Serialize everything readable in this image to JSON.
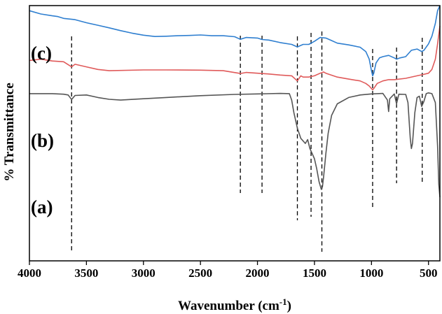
{
  "chart_data": {
    "type": "line",
    "xlabel": "Wavenumber (cm",
    "xlabel_sup": "-1",
    "xlabel_close": ")",
    "ylabel": "% Transmittance",
    "xlim": [
      4000,
      400
    ],
    "x_reversed": true,
    "xticks": [
      4000,
      3500,
      3000,
      2500,
      2000,
      1500,
      1000,
      500
    ],
    "yticks_shown": false,
    "ylim": [
      0,
      100
    ],
    "marker_lines": [
      3630,
      2150,
      1960,
      1650,
      1530,
      1435,
      990,
      780,
      555
    ],
    "series": [
      {
        "name": "(a)",
        "color": "#555555",
        "points": [
          [
            4000,
            65.5
          ],
          [
            3800,
            65.5
          ],
          [
            3700,
            65.3
          ],
          [
            3660,
            65.0
          ],
          [
            3630,
            63.2
          ],
          [
            3600,
            64.8
          ],
          [
            3500,
            65.0
          ],
          [
            3400,
            64.0
          ],
          [
            3300,
            63.3
          ],
          [
            3200,
            63.0
          ],
          [
            3000,
            63.5
          ],
          [
            2800,
            64.0
          ],
          [
            2500,
            64.7
          ],
          [
            2200,
            65.2
          ],
          [
            2000,
            65.4
          ],
          [
            1800,
            65.6
          ],
          [
            1720,
            65.5
          ],
          [
            1700,
            63.0
          ],
          [
            1680,
            58.0
          ],
          [
            1650,
            52.0
          ],
          [
            1620,
            48.0
          ],
          [
            1580,
            46.0
          ],
          [
            1560,
            47.5
          ],
          [
            1540,
            44.0
          ],
          [
            1520,
            42.0
          ],
          [
            1500,
            40.0
          ],
          [
            1480,
            36.0
          ],
          [
            1460,
            31.0
          ],
          [
            1440,
            28.0
          ],
          [
            1430,
            29.0
          ],
          [
            1420,
            33.0
          ],
          [
            1400,
            42.0
          ],
          [
            1380,
            50.0
          ],
          [
            1350,
            57.0
          ],
          [
            1300,
            61.5
          ],
          [
            1200,
            64.0
          ],
          [
            1100,
            65.0
          ],
          [
            1000,
            65.4
          ],
          [
            900,
            65.6
          ],
          [
            860,
            63.0
          ],
          [
            850,
            58.5
          ],
          [
            840,
            63.5
          ],
          [
            800,
            65.4
          ],
          [
            780,
            61.5
          ],
          [
            760,
            65.3
          ],
          [
            700,
            65.2
          ],
          [
            680,
            62.0
          ],
          [
            660,
            48.0
          ],
          [
            650,
            44.0
          ],
          [
            640,
            46.0
          ],
          [
            620,
            58.0
          ],
          [
            600,
            64.0
          ],
          [
            580,
            64.5
          ],
          [
            560,
            60.5
          ],
          [
            540,
            62.5
          ],
          [
            520,
            65.5
          ],
          [
            500,
            65.8
          ],
          [
            470,
            65.5
          ],
          [
            440,
            62.0
          ],
          [
            420,
            45.0
          ],
          [
            410,
            30.0
          ],
          [
            400,
            25.0
          ]
        ]
      },
      {
        "name": "(b)",
        "color": "#e05a5a",
        "points": [
          [
            4000,
            78.5
          ],
          [
            3900,
            79.0
          ],
          [
            3800,
            78.3
          ],
          [
            3700,
            78.0
          ],
          [
            3630,
            76.0
          ],
          [
            3600,
            77.0
          ],
          [
            3500,
            76.0
          ],
          [
            3400,
            75.0
          ],
          [
            3300,
            74.5
          ],
          [
            3000,
            74.8
          ],
          [
            2800,
            74.8
          ],
          [
            2500,
            74.7
          ],
          [
            2300,
            74.5
          ],
          [
            2150,
            73.4
          ],
          [
            2100,
            73.8
          ],
          [
            2000,
            73.5
          ],
          [
            1900,
            73.2
          ],
          [
            1800,
            72.8
          ],
          [
            1700,
            72.5
          ],
          [
            1650,
            70.5
          ],
          [
            1620,
            72.5
          ],
          [
            1600,
            72.0
          ],
          [
            1550,
            72.0
          ],
          [
            1500,
            72.5
          ],
          [
            1450,
            73.5
          ],
          [
            1420,
            74.0
          ],
          [
            1400,
            73.5
          ],
          [
            1300,
            72.0
          ],
          [
            1200,
            71.2
          ],
          [
            1100,
            70.5
          ],
          [
            1050,
            69.5
          ],
          [
            1020,
            68.5
          ],
          [
            1000,
            67.5
          ],
          [
            990,
            67.0
          ],
          [
            980,
            67.5
          ],
          [
            950,
            69.5
          ],
          [
            900,
            70.5
          ],
          [
            850,
            71.0
          ],
          [
            800,
            71.0
          ],
          [
            700,
            71.5
          ],
          [
            600,
            72.5
          ],
          [
            550,
            73.0
          ],
          [
            500,
            73.5
          ],
          [
            470,
            75.0
          ],
          [
            440,
            79.0
          ],
          [
            420,
            85.0
          ],
          [
            400,
            92.0
          ]
        ]
      },
      {
        "name": "(c)",
        "color": "#2f7fd0",
        "points": [
          [
            4000,
            98.0
          ],
          [
            3900,
            96.7
          ],
          [
            3800,
            96.0
          ],
          [
            3750,
            95.7
          ],
          [
            3700,
            95.0
          ],
          [
            3600,
            94.5
          ],
          [
            3500,
            93.3
          ],
          [
            3400,
            92.3
          ],
          [
            3300,
            91.3
          ],
          [
            3200,
            90.2
          ],
          [
            3100,
            89.2
          ],
          [
            3000,
            88.4
          ],
          [
            2900,
            87.9
          ],
          [
            2800,
            88.0
          ],
          [
            2700,
            88.2
          ],
          [
            2600,
            88.3
          ],
          [
            2500,
            88.5
          ],
          [
            2400,
            88.2
          ],
          [
            2300,
            88.2
          ],
          [
            2200,
            87.8
          ],
          [
            2150,
            86.8
          ],
          [
            2100,
            87.5
          ],
          [
            2000,
            87.3
          ],
          [
            1960,
            86.7
          ],
          [
            1900,
            86.5
          ],
          [
            1800,
            85.5
          ],
          [
            1700,
            84.8
          ],
          [
            1650,
            83.8
          ],
          [
            1600,
            84.8
          ],
          [
            1550,
            84.8
          ],
          [
            1500,
            86.0
          ],
          [
            1450,
            87.5
          ],
          [
            1400,
            87.3
          ],
          [
            1350,
            86.3
          ],
          [
            1300,
            85.3
          ],
          [
            1200,
            84.6
          ],
          [
            1100,
            83.7
          ],
          [
            1050,
            82.0
          ],
          [
            1020,
            79.0
          ],
          [
            1000,
            74.5
          ],
          [
            990,
            72.5
          ],
          [
            980,
            73.5
          ],
          [
            960,
            77.5
          ],
          [
            930,
            79.5
          ],
          [
            900,
            80.0
          ],
          [
            850,
            80.5
          ],
          [
            800,
            79.5
          ],
          [
            780,
            79.0
          ],
          [
            750,
            79.5
          ],
          [
            700,
            80.0
          ],
          [
            650,
            82.5
          ],
          [
            600,
            83.0
          ],
          [
            560,
            82.0
          ],
          [
            540,
            82.5
          ],
          [
            500,
            85.0
          ],
          [
            470,
            88.0
          ],
          [
            440,
            93.0
          ],
          [
            420,
            98.0
          ],
          [
            400,
            100.0
          ]
        ]
      }
    ]
  }
}
